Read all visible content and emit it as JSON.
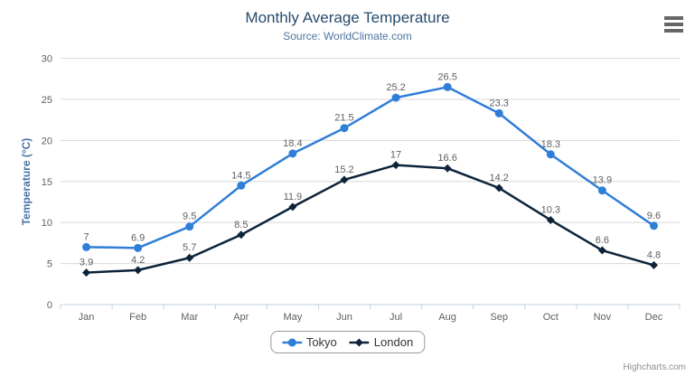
{
  "chart": {
    "title": "Monthly Average Temperature",
    "subtitle": "Source: WorldClimate.com",
    "credits": "Highcharts.com",
    "menu_icon": "hamburger-icon"
  },
  "chart_data": {
    "type": "line",
    "title": "Monthly Average Temperature",
    "subtitle": "Source: WorldClimate.com",
    "categories": [
      "Jan",
      "Feb",
      "Mar",
      "Apr",
      "May",
      "Jun",
      "Jul",
      "Aug",
      "Sep",
      "Oct",
      "Nov",
      "Dec"
    ],
    "series": [
      {
        "name": "Tokyo",
        "color": "#2f7ed8",
        "marker": "circle",
        "values": [
          7,
          6.9,
          9.5,
          14.5,
          18.4,
          21.5,
          25.2,
          26.5,
          23.3,
          18.3,
          13.9,
          9.6
        ]
      },
      {
        "name": "London",
        "color": "#0d233a",
        "marker": "diamond",
        "values": [
          3.9,
          4.2,
          5.7,
          8.5,
          11.9,
          15.2,
          17,
          16.6,
          14.2,
          10.3,
          6.6,
          4.8
        ]
      }
    ],
    "xlabel": "",
    "ylabel": "Temperature (°C)",
    "ylim": [
      0,
      30
    ],
    "ytick_interval": 5,
    "grid": true,
    "data_labels": true,
    "legend_position": "bottom"
  },
  "palette": {
    "title_color": "#274b6d",
    "subtitle_color": "#4d759e",
    "axis_title_color": "#4572a7",
    "tick_label_color": "#606060",
    "data_label_color": "#606060",
    "grid_color": "#d8d8d8",
    "axis_line_color": "#c0d0e0",
    "legend_text_color": "#333333",
    "credits_color": "#909090",
    "menu_icon_color": "#666666"
  }
}
